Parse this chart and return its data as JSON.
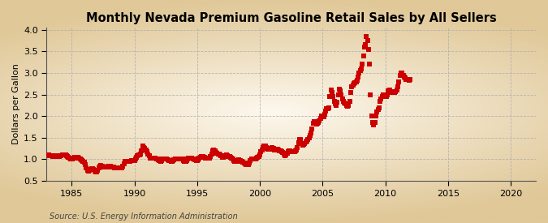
{
  "title": "Monthly Nevada Premium Gasoline Retail Sales by All Sellers",
  "ylabel": "Dollars per Gallon",
  "source": "Source: U.S. Energy Information Administration",
  "xlim": [
    1983.0,
    2022.0
  ],
  "ylim": [
    0.5,
    4.05
  ],
  "yticks": [
    0.5,
    1.0,
    1.5,
    2.0,
    2.5,
    3.0,
    3.5,
    4.0
  ],
  "xticks": [
    1985,
    1990,
    1995,
    2000,
    2005,
    2010,
    2015,
    2020
  ],
  "background_color": "#f5edd8",
  "plot_bg_color": "#faf6ec",
  "line_color": "#cc0000",
  "marker": "s",
  "markersize": 3.8,
  "title_fontsize": 10.5,
  "label_fontsize": 8,
  "tick_fontsize": 8,
  "source_fontsize": 7,
  "data": [
    [
      1983.17,
      1.1
    ],
    [
      1983.25,
      1.09
    ],
    [
      1983.33,
      1.09
    ],
    [
      1983.42,
      1.09
    ],
    [
      1983.5,
      1.07
    ],
    [
      1983.58,
      1.08
    ],
    [
      1983.67,
      1.08
    ],
    [
      1983.75,
      1.08
    ],
    [
      1983.83,
      1.07
    ],
    [
      1983.92,
      1.07
    ],
    [
      1984.0,
      1.07
    ],
    [
      1984.08,
      1.08
    ],
    [
      1984.17,
      1.09
    ],
    [
      1984.25,
      1.1
    ],
    [
      1984.33,
      1.1
    ],
    [
      1984.42,
      1.1
    ],
    [
      1984.5,
      1.1
    ],
    [
      1984.58,
      1.08
    ],
    [
      1984.67,
      1.06
    ],
    [
      1984.75,
      1.04
    ],
    [
      1984.83,
      1.02
    ],
    [
      1984.92,
      1.01
    ],
    [
      1985.0,
      1.0
    ],
    [
      1985.08,
      1.01
    ],
    [
      1985.17,
      1.02
    ],
    [
      1985.25,
      1.04
    ],
    [
      1985.33,
      1.05
    ],
    [
      1985.42,
      1.05
    ],
    [
      1985.5,
      1.04
    ],
    [
      1985.58,
      1.03
    ],
    [
      1985.67,
      1.01
    ],
    [
      1985.75,
      0.99
    ],
    [
      1985.83,
      0.97
    ],
    [
      1985.92,
      0.96
    ],
    [
      1986.0,
      0.94
    ],
    [
      1986.08,
      0.88
    ],
    [
      1986.17,
      0.8
    ],
    [
      1986.25,
      0.74
    ],
    [
      1986.33,
      0.73
    ],
    [
      1986.42,
      0.74
    ],
    [
      1986.5,
      0.76
    ],
    [
      1986.58,
      0.78
    ],
    [
      1986.67,
      0.78
    ],
    [
      1986.75,
      0.76
    ],
    [
      1986.83,
      0.73
    ],
    [
      1986.92,
      0.7
    ],
    [
      1987.0,
      0.7
    ],
    [
      1987.08,
      0.74
    ],
    [
      1987.17,
      0.8
    ],
    [
      1987.25,
      0.84
    ],
    [
      1987.33,
      0.85
    ],
    [
      1987.42,
      0.84
    ],
    [
      1987.5,
      0.83
    ],
    [
      1987.58,
      0.82
    ],
    [
      1987.67,
      0.82
    ],
    [
      1987.75,
      0.82
    ],
    [
      1987.83,
      0.83
    ],
    [
      1987.92,
      0.84
    ],
    [
      1988.0,
      0.84
    ],
    [
      1988.08,
      0.84
    ],
    [
      1988.17,
      0.83
    ],
    [
      1988.25,
      0.83
    ],
    [
      1988.33,
      0.82
    ],
    [
      1988.42,
      0.81
    ],
    [
      1988.5,
      0.81
    ],
    [
      1988.58,
      0.81
    ],
    [
      1988.67,
      0.81
    ],
    [
      1988.75,
      0.81
    ],
    [
      1988.83,
      0.81
    ],
    [
      1988.92,
      0.8
    ],
    [
      1989.0,
      0.8
    ],
    [
      1989.08,
      0.84
    ],
    [
      1989.17,
      0.9
    ],
    [
      1989.25,
      0.95
    ],
    [
      1989.33,
      0.96
    ],
    [
      1989.42,
      0.95
    ],
    [
      1989.5,
      0.95
    ],
    [
      1989.58,
      0.95
    ],
    [
      1989.67,
      0.96
    ],
    [
      1989.75,
      0.97
    ],
    [
      1989.83,
      0.97
    ],
    [
      1989.92,
      0.97
    ],
    [
      1990.0,
      0.98
    ],
    [
      1990.08,
      1.0
    ],
    [
      1990.17,
      1.04
    ],
    [
      1990.25,
      1.08
    ],
    [
      1990.33,
      1.1
    ],
    [
      1990.42,
      1.1
    ],
    [
      1990.5,
      1.12
    ],
    [
      1990.58,
      1.2
    ],
    [
      1990.67,
      1.3
    ],
    [
      1990.75,
      1.28
    ],
    [
      1990.83,
      1.25
    ],
    [
      1990.92,
      1.22
    ],
    [
      1991.0,
      1.18
    ],
    [
      1991.08,
      1.13
    ],
    [
      1991.17,
      1.08
    ],
    [
      1991.25,
      1.03
    ],
    [
      1991.33,
      1.02
    ],
    [
      1991.42,
      1.02
    ],
    [
      1991.5,
      1.03
    ],
    [
      1991.58,
      1.03
    ],
    [
      1991.67,
      1.02
    ],
    [
      1991.75,
      1.01
    ],
    [
      1991.83,
      1.0
    ],
    [
      1991.92,
      0.99
    ],
    [
      1992.0,
      0.97
    ],
    [
      1992.08,
      0.96
    ],
    [
      1992.17,
      0.97
    ],
    [
      1992.25,
      1.0
    ],
    [
      1992.33,
      1.01
    ],
    [
      1992.42,
      1.01
    ],
    [
      1992.5,
      1.01
    ],
    [
      1992.58,
      1.0
    ],
    [
      1992.67,
      0.99
    ],
    [
      1992.75,
      0.98
    ],
    [
      1992.83,
      0.97
    ],
    [
      1992.92,
      0.96
    ],
    [
      1993.0,
      0.96
    ],
    [
      1993.08,
      0.97
    ],
    [
      1993.17,
      0.99
    ],
    [
      1993.25,
      1.0
    ],
    [
      1993.33,
      1.0
    ],
    [
      1993.42,
      1.0
    ],
    [
      1993.5,
      1.01
    ],
    [
      1993.58,
      1.01
    ],
    [
      1993.67,
      1.01
    ],
    [
      1993.75,
      1.01
    ],
    [
      1993.83,
      1.0
    ],
    [
      1993.92,
      0.97
    ],
    [
      1994.0,
      0.95
    ],
    [
      1994.08,
      0.95
    ],
    [
      1994.17,
      0.97
    ],
    [
      1994.25,
      1.0
    ],
    [
      1994.33,
      1.02
    ],
    [
      1994.42,
      1.02
    ],
    [
      1994.5,
      1.02
    ],
    [
      1994.58,
      1.02
    ],
    [
      1994.67,
      1.01
    ],
    [
      1994.75,
      1.0
    ],
    [
      1994.83,
      0.99
    ],
    [
      1994.92,
      0.98
    ],
    [
      1995.0,
      0.98
    ],
    [
      1995.08,
      0.99
    ],
    [
      1995.17,
      1.02
    ],
    [
      1995.25,
      1.05
    ],
    [
      1995.33,
      1.07
    ],
    [
      1995.42,
      1.07
    ],
    [
      1995.5,
      1.06
    ],
    [
      1995.58,
      1.04
    ],
    [
      1995.67,
      1.03
    ],
    [
      1995.75,
      1.03
    ],
    [
      1995.83,
      1.03
    ],
    [
      1995.92,
      1.02
    ],
    [
      1996.0,
      1.03
    ],
    [
      1996.08,
      1.06
    ],
    [
      1996.17,
      1.13
    ],
    [
      1996.25,
      1.19
    ],
    [
      1996.33,
      1.21
    ],
    [
      1996.42,
      1.19
    ],
    [
      1996.5,
      1.16
    ],
    [
      1996.58,
      1.14
    ],
    [
      1996.67,
      1.13
    ],
    [
      1996.75,
      1.12
    ],
    [
      1996.83,
      1.11
    ],
    [
      1996.92,
      1.08
    ],
    [
      1997.0,
      1.05
    ],
    [
      1997.08,
      1.05
    ],
    [
      1997.17,
      1.07
    ],
    [
      1997.25,
      1.09
    ],
    [
      1997.33,
      1.1
    ],
    [
      1997.42,
      1.09
    ],
    [
      1997.5,
      1.07
    ],
    [
      1997.58,
      1.06
    ],
    [
      1997.67,
      1.04
    ],
    [
      1997.75,
      1.03
    ],
    [
      1997.83,
      1.01
    ],
    [
      1997.92,
      0.98
    ],
    [
      1998.0,
      0.96
    ],
    [
      1998.08,
      0.95
    ],
    [
      1998.17,
      0.96
    ],
    [
      1998.25,
      0.98
    ],
    [
      1998.33,
      0.99
    ],
    [
      1998.42,
      0.98
    ],
    [
      1998.5,
      0.96
    ],
    [
      1998.58,
      0.95
    ],
    [
      1998.67,
      0.93
    ],
    [
      1998.75,
      0.91
    ],
    [
      1998.83,
      0.89
    ],
    [
      1998.92,
      0.88
    ],
    [
      1999.0,
      0.87
    ],
    [
      1999.08,
      0.88
    ],
    [
      1999.17,
      0.92
    ],
    [
      1999.25,
      0.97
    ],
    [
      1999.33,
      1.0
    ],
    [
      1999.42,
      1.01
    ],
    [
      1999.5,
      1.01
    ],
    [
      1999.58,
      1.01
    ],
    [
      1999.67,
      1.01
    ],
    [
      1999.75,
      1.02
    ],
    [
      1999.83,
      1.04
    ],
    [
      1999.92,
      1.07
    ],
    [
      2000.0,
      1.11
    ],
    [
      2000.08,
      1.17
    ],
    [
      2000.17,
      1.22
    ],
    [
      2000.25,
      1.28
    ],
    [
      2000.33,
      1.31
    ],
    [
      2000.42,
      1.3
    ],
    [
      2000.5,
      1.27
    ],
    [
      2000.58,
      1.25
    ],
    [
      2000.67,
      1.24
    ],
    [
      2000.75,
      1.23
    ],
    [
      2000.83,
      1.23
    ],
    [
      2000.92,
      1.25
    ],
    [
      2001.0,
      1.28
    ],
    [
      2001.08,
      1.26
    ],
    [
      2001.17,
      1.22
    ],
    [
      2001.25,
      1.21
    ],
    [
      2001.33,
      1.23
    ],
    [
      2001.42,
      1.24
    ],
    [
      2001.5,
      1.21
    ],
    [
      2001.58,
      1.2
    ],
    [
      2001.67,
      1.19
    ],
    [
      2001.75,
      1.18
    ],
    [
      2001.83,
      1.15
    ],
    [
      2001.92,
      1.12
    ],
    [
      2002.0,
      1.09
    ],
    [
      2002.08,
      1.1
    ],
    [
      2002.17,
      1.14
    ],
    [
      2002.25,
      1.18
    ],
    [
      2002.33,
      1.2
    ],
    [
      2002.42,
      1.2
    ],
    [
      2002.5,
      1.18
    ],
    [
      2002.58,
      1.17
    ],
    [
      2002.67,
      1.17
    ],
    [
      2002.75,
      1.18
    ],
    [
      2002.83,
      1.2
    ],
    [
      2002.92,
      1.22
    ],
    [
      2003.0,
      1.27
    ],
    [
      2003.08,
      1.38
    ],
    [
      2003.17,
      1.46
    ],
    [
      2003.25,
      1.45
    ],
    [
      2003.33,
      1.37
    ],
    [
      2003.42,
      1.33
    ],
    [
      2003.5,
      1.35
    ],
    [
      2003.58,
      1.37
    ],
    [
      2003.67,
      1.4
    ],
    [
      2003.75,
      1.43
    ],
    [
      2003.83,
      1.46
    ],
    [
      2003.92,
      1.5
    ],
    [
      2004.0,
      1.55
    ],
    [
      2004.08,
      1.6
    ],
    [
      2004.17,
      1.71
    ],
    [
      2004.25,
      1.83
    ],
    [
      2004.33,
      1.88
    ],
    [
      2004.42,
      1.85
    ],
    [
      2004.5,
      1.82
    ],
    [
      2004.58,
      1.83
    ],
    [
      2004.67,
      1.86
    ],
    [
      2004.75,
      1.89
    ],
    [
      2004.83,
      1.95
    ],
    [
      2004.92,
      2.0
    ],
    [
      2005.0,
      1.98
    ],
    [
      2005.08,
      1.98
    ],
    [
      2005.17,
      2.04
    ],
    [
      2005.25,
      2.12
    ],
    [
      2005.33,
      2.18
    ],
    [
      2005.42,
      2.18
    ],
    [
      2005.5,
      2.2
    ],
    [
      2005.58,
      2.45
    ],
    [
      2005.67,
      2.6
    ],
    [
      2005.75,
      2.55
    ],
    [
      2005.83,
      2.45
    ],
    [
      2005.92,
      2.35
    ],
    [
      2006.0,
      2.28
    ],
    [
      2006.08,
      2.25
    ],
    [
      2006.17,
      2.32
    ],
    [
      2006.25,
      2.5
    ],
    [
      2006.33,
      2.62
    ],
    [
      2006.42,
      2.58
    ],
    [
      2006.5,
      2.5
    ],
    [
      2006.58,
      2.4
    ],
    [
      2006.67,
      2.35
    ],
    [
      2006.75,
      2.3
    ],
    [
      2006.83,
      2.28
    ],
    [
      2006.92,
      2.25
    ],
    [
      2007.0,
      2.22
    ],
    [
      2007.08,
      2.25
    ],
    [
      2007.17,
      2.35
    ],
    [
      2007.25,
      2.55
    ],
    [
      2007.33,
      2.68
    ],
    [
      2007.42,
      2.72
    ],
    [
      2007.5,
      2.75
    ],
    [
      2007.58,
      2.78
    ],
    [
      2007.67,
      2.8
    ],
    [
      2007.75,
      2.82
    ],
    [
      2007.83,
      2.9
    ],
    [
      2007.92,
      3.0
    ],
    [
      2008.0,
      3.05
    ],
    [
      2008.08,
      3.1
    ],
    [
      2008.17,
      3.2
    ],
    [
      2008.25,
      3.4
    ],
    [
      2008.33,
      3.6
    ],
    [
      2008.42,
      3.65
    ],
    [
      2008.5,
      3.85
    ],
    [
      2008.58,
      3.75
    ],
    [
      2008.67,
      3.55
    ],
    [
      2008.75,
      3.2
    ],
    [
      2008.83,
      2.5
    ],
    [
      2008.92,
      2.0
    ],
    [
      2009.0,
      1.85
    ],
    [
      2009.08,
      1.8
    ],
    [
      2009.17,
      1.85
    ],
    [
      2009.25,
      2.0
    ],
    [
      2009.33,
      2.1
    ],
    [
      2009.42,
      2.15
    ],
    [
      2009.5,
      2.2
    ],
    [
      2009.58,
      2.35
    ],
    [
      2009.67,
      2.4
    ],
    [
      2009.75,
      2.45
    ],
    [
      2009.83,
      2.5
    ],
    [
      2009.92,
      2.5
    ],
    [
      2010.0,
      2.45
    ],
    [
      2010.08,
      2.45
    ],
    [
      2010.17,
      2.5
    ],
    [
      2010.25,
      2.58
    ],
    [
      2010.33,
      2.6
    ],
    [
      2010.42,
      2.57
    ],
    [
      2010.5,
      2.55
    ],
    [
      2010.58,
      2.55
    ],
    [
      2010.67,
      2.55
    ],
    [
      2010.75,
      2.55
    ],
    [
      2010.83,
      2.57
    ],
    [
      2010.92,
      2.6
    ],
    [
      2011.0,
      2.68
    ],
    [
      2011.08,
      2.8
    ],
    [
      2011.17,
      2.95
    ],
    [
      2011.25,
      3.0
    ],
    [
      2011.33,
      3.0
    ],
    [
      2011.42,
      2.95
    ],
    [
      2011.5,
      2.9
    ],
    [
      2011.58,
      2.88
    ],
    [
      2011.67,
      2.85
    ],
    [
      2011.75,
      2.85
    ],
    [
      2011.83,
      2.85
    ],
    [
      2011.92,
      2.82
    ],
    [
      2012.0,
      2.85
    ]
  ]
}
